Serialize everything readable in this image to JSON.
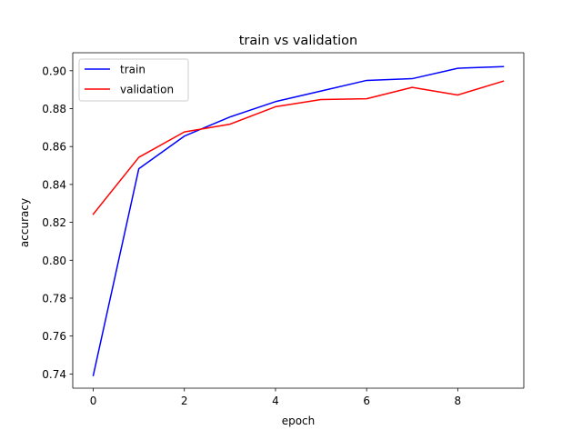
{
  "chart_data": {
    "type": "line",
    "title": "train vs validation",
    "xlabel": "epoch",
    "ylabel": "accuracy",
    "x": [
      0,
      1,
      2,
      3,
      4,
      5,
      6,
      7,
      8,
      9
    ],
    "xlim": [
      -0.45,
      9.45
    ],
    "ylim": [
      0.7325,
      0.9095
    ],
    "xticks": [
      0,
      2,
      4,
      6,
      8
    ],
    "xtick_labels": [
      "0",
      "2",
      "4",
      "6",
      "8"
    ],
    "yticks": [
      0.74,
      0.76,
      0.78,
      0.8,
      0.82,
      0.84,
      0.86,
      0.88,
      0.9
    ],
    "ytick_labels": [
      "0.74",
      "0.76",
      "0.78",
      "0.80",
      "0.82",
      "0.84",
      "0.86",
      "0.88",
      "0.90"
    ],
    "grid": false,
    "legend_position": "top-left",
    "series": [
      {
        "name": "train",
        "color": "#0000ff",
        "values": [
          0.7392,
          0.8483,
          0.8655,
          0.8756,
          0.8837,
          0.8893,
          0.8949,
          0.8958,
          0.9013,
          0.9022
        ]
      },
      {
        "name": "validation",
        "color": "#ff0000",
        "values": [
          0.8243,
          0.8543,
          0.8677,
          0.8718,
          0.881,
          0.8848,
          0.8852,
          0.8912,
          0.8872,
          0.8945
        ]
      }
    ]
  }
}
